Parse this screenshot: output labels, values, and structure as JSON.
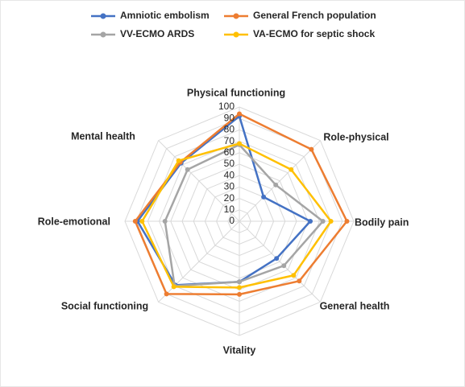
{
  "chart_data": {
    "type": "radar",
    "categories": [
      "Physical functioning",
      "Role-physical",
      "Bodily pain",
      "General health",
      "Vitality",
      "Social functioning",
      "Role-emotional",
      "Mental health"
    ],
    "series": [
      {
        "name": "Amniotic embolism",
        "color": "#4472c4",
        "values": [
          92,
          30,
          62,
          46,
          53,
          79,
          89,
          72
        ]
      },
      {
        "name": "General French population",
        "color": "#ed7d31",
        "values": [
          94,
          89,
          94,
          74,
          64,
          90,
          91,
          73
        ]
      },
      {
        "name": "VV-ECMO ARDS",
        "color": "#a5a5a5",
        "values": [
          67,
          45,
          73,
          55,
          53,
          80,
          65,
          64
        ]
      },
      {
        "name": "VA-ECMO for septic shock",
        "color": "#ffc000",
        "values": [
          68,
          64,
          80,
          67,
          58,
          81,
          85,
          75
        ]
      }
    ],
    "rlim": [
      0,
      100
    ],
    "rticks": [
      0,
      10,
      20,
      30,
      40,
      50,
      60,
      70,
      80,
      90,
      100
    ],
    "grid": true,
    "legend": "top"
  }
}
